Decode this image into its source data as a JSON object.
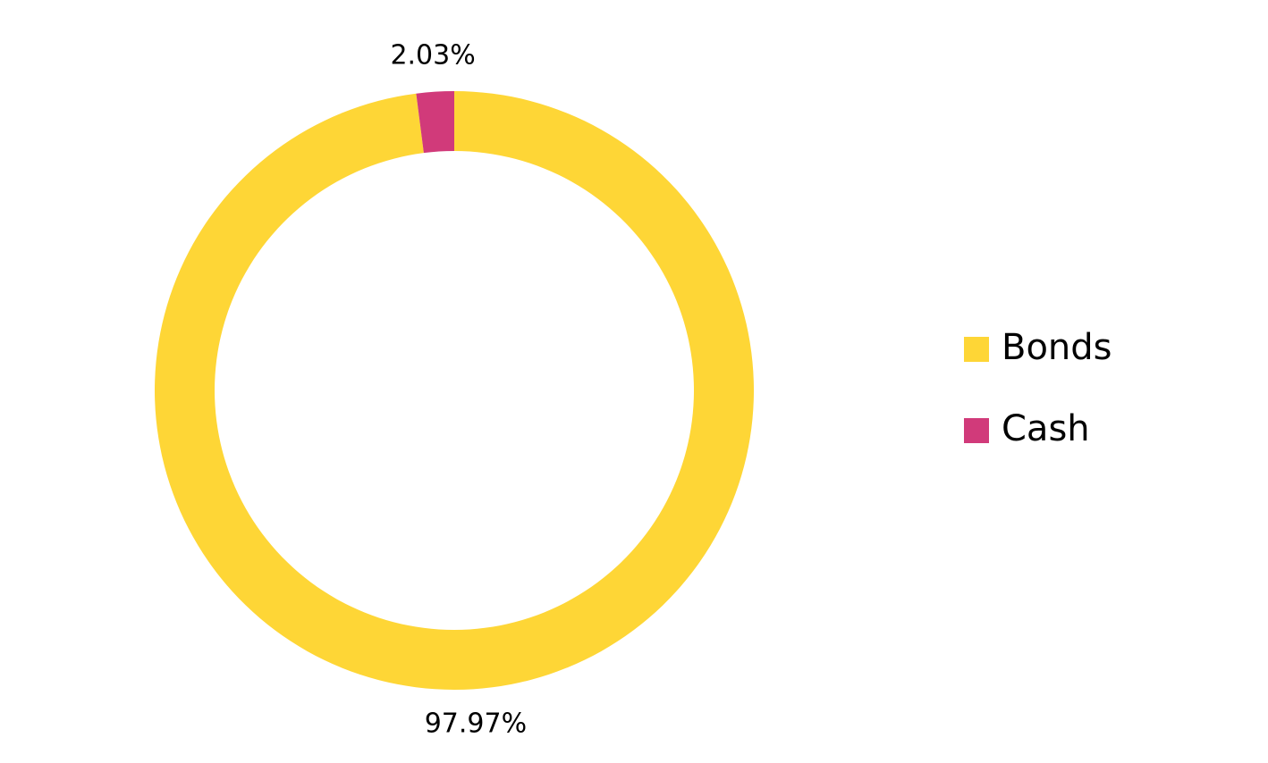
{
  "chart_data": {
    "type": "donut",
    "categories": [
      "Bonds",
      "Cash"
    ],
    "values": [
      97.97,
      2.03
    ],
    "value_labels": [
      "97.97%",
      "2.03%"
    ],
    "colors": [
      "#fed636",
      "#d13a7a"
    ],
    "legend": "right"
  }
}
